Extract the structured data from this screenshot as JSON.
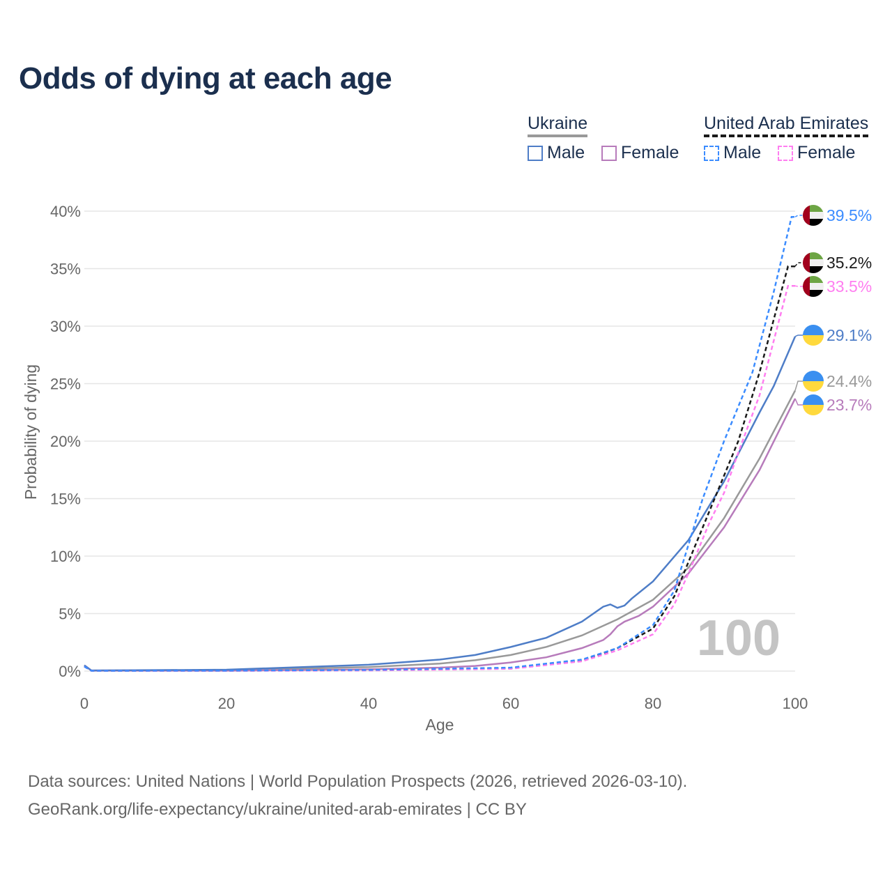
{
  "title": "Odds of dying at each age",
  "legend": {
    "groups": [
      {
        "name": "Ukraine",
        "items": [
          "Male",
          "Female"
        ]
      },
      {
        "name": "United Arab Emirates",
        "items": [
          "Male",
          "Female"
        ]
      }
    ]
  },
  "age_marker": "100",
  "source": {
    "line1": "Data sources: United Nations | World Population Prospects (2026, retrieved 2026-03-10).",
    "line2": "GeoRank.org/life-expectancy/ukraine/united-arab-emirates | CC BY"
  },
  "chart_data": {
    "type": "line",
    "xlabel": "Age",
    "ylabel": "Probability of dying",
    "xlim": [
      0,
      100
    ],
    "ylim": [
      0,
      40
    ],
    "xticks": [
      "0",
      "20",
      "40",
      "60",
      "80",
      "100"
    ],
    "yticks": [
      "0%",
      "5%",
      "10%",
      "15%",
      "20%",
      "25%",
      "30%",
      "35%",
      "40%"
    ],
    "grid": true,
    "series": [
      {
        "name": "Ukraine Total",
        "color": "#999999",
        "dash": false,
        "flag": "ukraine",
        "end_label": "24.4%",
        "x": [
          0,
          1,
          20,
          40,
          50,
          55,
          60,
          65,
          70,
          75,
          80,
          85,
          90,
          95,
          100
        ],
        "y": [
          0.5,
          0.05,
          0.08,
          0.35,
          0.65,
          0.95,
          1.4,
          2.1,
          3.1,
          4.5,
          6.2,
          9.0,
          13.3,
          18.5,
          24.4
        ]
      },
      {
        "name": "Ukraine Female",
        "color": "#b77bbb",
        "dash": false,
        "flag": "ukraine",
        "end_label": "23.7%",
        "x": [
          0,
          1,
          20,
          40,
          50,
          55,
          60,
          65,
          70,
          73,
          74,
          75,
          76,
          78,
          80,
          85,
          90,
          95,
          100
        ],
        "y": [
          0.5,
          0.04,
          0.04,
          0.15,
          0.3,
          0.45,
          0.75,
          1.2,
          2.0,
          2.7,
          3.2,
          3.9,
          4.3,
          4.8,
          5.6,
          8.5,
          12.5,
          17.5,
          23.7
        ]
      },
      {
        "name": "Ukraine Male",
        "color": "#4e7dc7",
        "dash": false,
        "flag": "ukraine",
        "end_label": "29.1%",
        "x": [
          0,
          1,
          20,
          40,
          50,
          55,
          60,
          65,
          70,
          73,
          74,
          75,
          76,
          77,
          80,
          85,
          90,
          95,
          97,
          100
        ],
        "y": [
          0.5,
          0.05,
          0.12,
          0.55,
          1.0,
          1.4,
          2.1,
          2.9,
          4.3,
          5.6,
          5.8,
          5.5,
          5.7,
          6.3,
          7.8,
          11.4,
          16.5,
          22.5,
          24.8,
          29.1
        ]
      },
      {
        "name": "UAE Total",
        "color": "#1a1a1a",
        "dash": true,
        "flag": "uae",
        "end_label": "35.2%",
        "x": [
          0,
          1,
          20,
          40,
          60,
          70,
          75,
          80,
          83,
          85,
          88,
          90,
          92,
          95,
          99,
          100
        ],
        "y": [
          0.4,
          0.03,
          0.03,
          0.08,
          0.25,
          0.9,
          2.0,
          3.7,
          6.5,
          9.5,
          14,
          17,
          20,
          26,
          35.2,
          35.2
        ]
      },
      {
        "name": "UAE Female",
        "color": "#ff7ef0",
        "dash": true,
        "flag": "uae",
        "end_label": "33.5%",
        "x": [
          0,
          1,
          20,
          40,
          60,
          70,
          75,
          80,
          83,
          85,
          88,
          90,
          92,
          95,
          99,
          100
        ],
        "y": [
          0.4,
          0.03,
          0.02,
          0.05,
          0.2,
          0.85,
          1.8,
          3.2,
          5.8,
          8.5,
          13,
          15.5,
          19,
          24,
          33.5,
          33.5
        ]
      },
      {
        "name": "UAE Male",
        "color": "#3b8cff",
        "dash": true,
        "flag": "uae",
        "end_label": "39.5%",
        "x": [
          0,
          1,
          20,
          40,
          60,
          70,
          75,
          80,
          83,
          85,
          87,
          90,
          94,
          97,
          99.5,
          100
        ],
        "y": [
          0.4,
          0.03,
          0.04,
          0.1,
          0.3,
          1.0,
          2.0,
          4.0,
          7.0,
          11.0,
          15.0,
          20.0,
          26.0,
          33.0,
          39.5,
          39.5
        ]
      }
    ]
  }
}
